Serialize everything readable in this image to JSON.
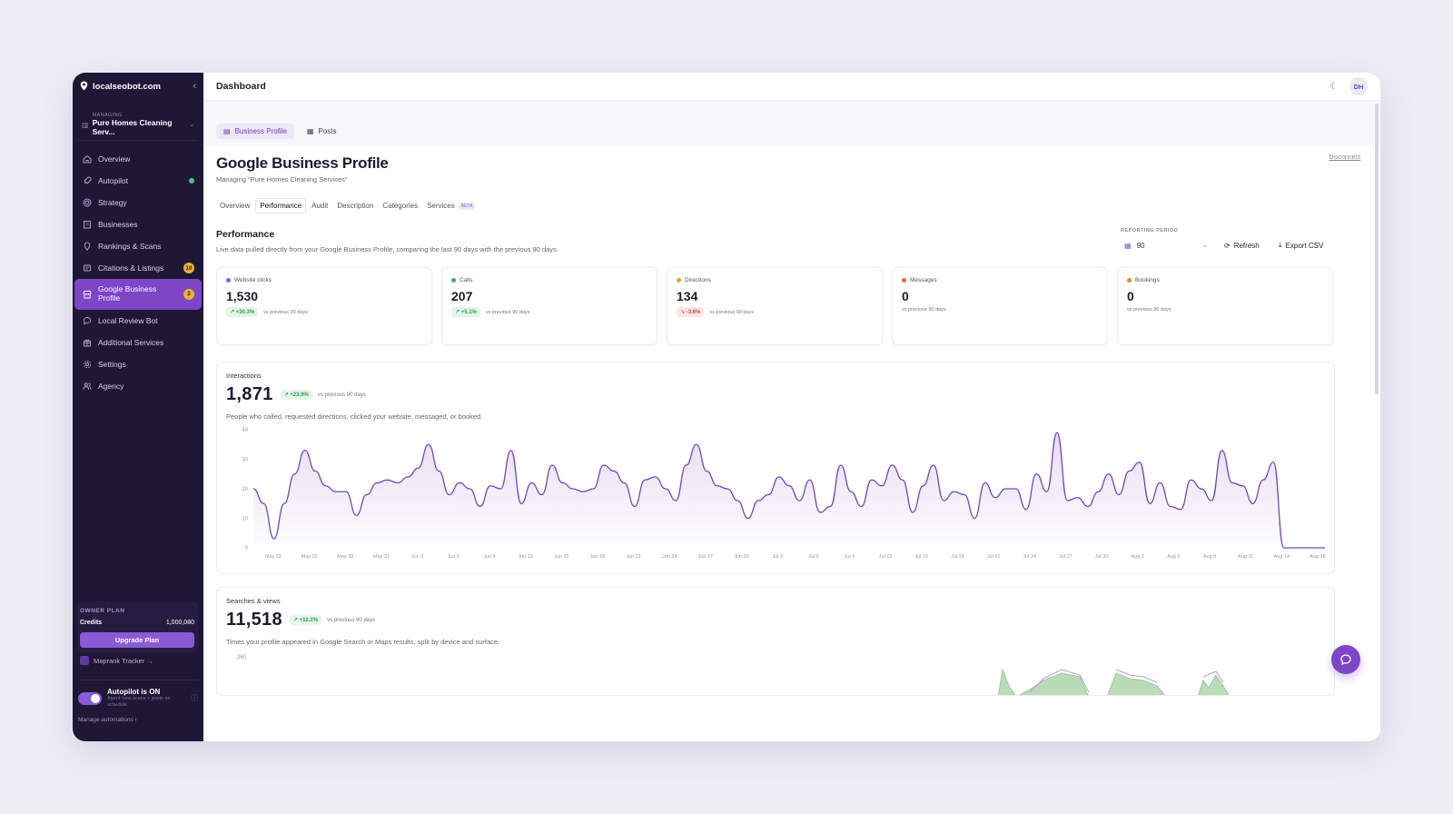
{
  "sidebar": {
    "brand": "localseobot.com",
    "managing_label": "MANAGING",
    "business_name": "Pure Homes Cleaning Serv...",
    "items": [
      {
        "label": "Overview",
        "icon": "home-icon"
      },
      {
        "label": "Autopilot",
        "icon": "rocket-icon"
      },
      {
        "label": "Strategy",
        "icon": "target-icon"
      },
      {
        "label": "Businesses",
        "icon": "building-icon"
      },
      {
        "label": "Rankings & Scans",
        "icon": "pin-icon"
      },
      {
        "label": "Citations & Listings",
        "icon": "list-icon",
        "badge": "10"
      },
      {
        "label": "Google Business Profile",
        "icon": "store-icon",
        "badge": "2"
      },
      {
        "label": "Local Review Bot",
        "icon": "chat-icon"
      },
      {
        "label": "Additional Services",
        "icon": "gift-icon"
      },
      {
        "label": "Settings",
        "icon": "gear-icon"
      },
      {
        "label": "Agency",
        "icon": "users-icon"
      }
    ],
    "plan": {
      "label": "OWNER PLAN",
      "credits_label": "Credits",
      "credits_value": "1,000,080",
      "upgrade_label": "Upgrade Plan"
    },
    "maprank": "Maprank Tracker →",
    "autopilot": {
      "title": "Autopilot is ON",
      "desc": "Agent runs scans + posts on schedule",
      "manage": "Manage automations ›"
    }
  },
  "topbar": {
    "title": "Dashboard",
    "avatar": "DH"
  },
  "subtabs": [
    {
      "label": "Business Profile"
    },
    {
      "label": "Posts"
    }
  ],
  "header": {
    "title": "Google Business Profile",
    "subtitle": "Managing \"Pure Homes Cleaning Services\"",
    "disconnect": "Disconnect"
  },
  "gbp_tabs": [
    {
      "label": "Overview"
    },
    {
      "label": "Performance"
    },
    {
      "label": "Audit"
    },
    {
      "label": "Description"
    },
    {
      "label": "Categories"
    },
    {
      "label": "Services",
      "badge": "BETA"
    }
  ],
  "performance": {
    "title": "Performance",
    "subtitle": "Live data pulled directly from your Google Business Profile, comparing the last 90 days with the previous 90 days.",
    "reporting_label": "REPORTING PERIOD",
    "reporting_value": "90",
    "refresh_label": "Refresh",
    "export_label": "Export CSV"
  },
  "metrics": [
    {
      "label": "Website clicks",
      "value": "1,530",
      "change": "+30.3%",
      "trend": "up",
      "dot": "#5b7bd6",
      "cmp": "vs previous 90 days"
    },
    {
      "label": "Calls",
      "value": "207",
      "change": "+5.1%",
      "trend": "up",
      "dot": "#3fae5c",
      "cmp": "vs previous 90 days"
    },
    {
      "label": "Directions",
      "value": "134",
      "change": "-3.6%",
      "trend": "down",
      "dot": "#e0a63a",
      "cmp": "vs previous 90 days"
    },
    {
      "label": "Messages",
      "value": "0",
      "change": "",
      "trend": "none",
      "dot": "#e06a3a",
      "cmp": "vs previous 90 days"
    },
    {
      "label": "Bookings",
      "value": "0",
      "change": "",
      "trend": "none",
      "dot": "#e08a3a",
      "cmp": "vs previous 90 days"
    }
  ],
  "interactions": {
    "title": "Interactions",
    "value": "1,871",
    "change": "+23.9%",
    "cmp": "vs previous 90 days",
    "desc": "People who called, requested directions, clicked your website, messaged, or booked."
  },
  "searches": {
    "title": "Searches & views",
    "value": "11,518",
    "change": "+12.2%",
    "cmp": "vs previous 90 days",
    "desc": "Times your profile appeared in Google Search or Maps results, split by device and surface.",
    "y_top_label": "260"
  },
  "colors": {
    "accent": "#7c46c7",
    "sidebar_bg": "#1e1736",
    "line": "#7445b8"
  },
  "chart_data": {
    "type": "line",
    "title": "",
    "xlabel": "",
    "ylabel": "",
    "ylim": [
      0,
      40
    ],
    "yticks": [
      0,
      10,
      20,
      30,
      40
    ],
    "xtick_labels": [
      "May 22",
      "May 25",
      "May 28",
      "May 31",
      "Jun 3",
      "Jun 6",
      "Jun 9",
      "Jun 12",
      "Jun 15",
      "Jun 18",
      "Jun 21",
      "Jun 24",
      "Jun 27",
      "Jun 30",
      "Jul 3",
      "Jul 6",
      "Jul 9",
      "Jul 12",
      "Jul 15",
      "Jul 18",
      "Jul 21",
      "Jul 24",
      "Jul 27",
      "Jul 30",
      "Aug 2",
      "Aug 5",
      "Aug 8",
      "Aug 11",
      "Aug 14",
      "Aug 18"
    ],
    "series": [
      {
        "values": [
          20,
          15,
          3,
          15,
          25,
          33,
          26,
          21,
          19,
          19,
          11,
          18,
          22,
          23,
          22,
          24,
          27,
          35,
          26,
          18,
          22,
          20,
          14,
          21,
          20,
          33,
          15,
          22,
          18,
          28,
          22,
          20,
          19,
          20,
          28,
          26,
          22,
          14,
          23,
          24,
          20,
          16,
          28,
          35,
          26,
          21,
          20,
          16,
          10,
          16,
          18,
          24,
          21,
          16,
          23,
          12,
          14,
          28,
          19,
          14,
          23,
          21,
          28,
          23,
          12,
          21,
          28,
          16,
          19,
          18,
          10,
          22,
          17,
          20,
          20,
          13,
          25,
          19,
          39,
          16,
          17,
          14,
          19,
          25,
          18,
          26,
          29,
          15,
          22,
          14,
          13,
          23,
          20,
          16,
          33,
          22,
          21,
          15,
          23,
          29,
          0,
          0,
          0,
          0,
          0
        ]
      }
    ]
  }
}
